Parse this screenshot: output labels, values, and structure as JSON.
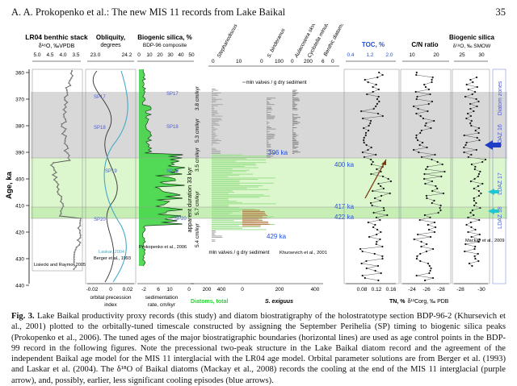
{
  "header": {
    "authors_title": "A. A. Prokopenko et al.: The new MIS 11 records from Lake Baikal",
    "page_number": "35"
  },
  "figure": {
    "y_axis": {
      "label": "Age, ka",
      "ticks": [
        "360",
        "370",
        "380",
        "390",
        "400",
        "410",
        "420",
        "430",
        "440"
      ]
    },
    "lr04": {
      "title": "LR04 benthic stack",
      "subtitle": "δ¹⁸O, ‰VPDB",
      "ticks": [
        "5.0",
        "4.5",
        "4.0",
        "3.5"
      ],
      "credit": "Lisiecki and Raymo, 2005"
    },
    "orbital": {
      "title": "Obliquity,",
      "title2": "degrees",
      "top_ticks": [
        "23.0",
        "24.2"
      ],
      "bottom_ticks": [
        "-0.02",
        "0",
        "0.02"
      ],
      "bottom_label_1": "orbital precession",
      "bottom_label_2": "index",
      "credit_laskar": "Laskar, 2004",
      "credit_berger": "Berger et al., 1993",
      "sp_labels": [
        "SP17",
        "SP18",
        "SP19",
        "SP20"
      ]
    },
    "bsi": {
      "title": "Biogenic silica, %",
      "subtitle": "BDP-96 composite",
      "top_ticks": [
        "0",
        "10",
        "20",
        "30",
        "40",
        "50"
      ],
      "bottom_ticks": [
        "-2",
        "6",
        "10"
      ],
      "bottom_label_1": "sedimentation",
      "bottom_label_2": "rate, cm/kyr",
      "credit": "Prokopenko et al., 2006",
      "sp_labels": [
        "SP17",
        "SP18",
        "SP19",
        "SP20"
      ],
      "rates": [
        "3.8 cm/kyr",
        "5.3 cm/kyr",
        "3.5 cm/kyr",
        "5.7 cm/kyr",
        "5.4 cm/kyr"
      ],
      "duration": "apparent duration 33 kyr"
    },
    "diatoms": {
      "species": [
        "Stephanodiscus distinctus",
        "S. binderanus",
        "Aulacoseira skvortzowii",
        "Cyclotella minuta",
        "Benthic diatoms"
      ],
      "units_label": "mln valves / g dry sediment",
      "units_label_2": "mln valves / g dry sediment",
      "credit": "Khursevich et al., 2001",
      "total_label": "Diatoms, total",
      "exiguus_label": "S. exiguus",
      "bottom_ticks_total": [
        "0",
        "200",
        "400"
      ],
      "bottom_ticks_exiguus": [
        "0",
        "200",
        "400"
      ],
      "top_ticks_a": [
        "0",
        "10"
      ],
      "top_ticks_b": [
        "0",
        "100"
      ],
      "top_ticks_c": [
        "0",
        "200"
      ],
      "top_ticks_d": [
        "6",
        "0"
      ],
      "ages": [
        "396 ka",
        "400 ka",
        "417 ka",
        "422 ka",
        "429 ka"
      ]
    },
    "toc": {
      "title": "TOC, %",
      "top_ticks": [
        "0.4",
        "1.2",
        "2.0"
      ],
      "bottom_label": "TN, %",
      "bottom_ticks": [
        "0.08",
        "0.12",
        "0.16"
      ]
    },
    "cn": {
      "title": "C/N ratio",
      "top_ticks": [
        "10",
        "20"
      ],
      "bottom_ticks": [
        "-24",
        "-26",
        "-28"
      ],
      "bottom_label": "δ¹³Corg, ‰ PDB"
    },
    "bsio": {
      "title": "Biogenic silica",
      "subtitle": "δ¹⁸O, ‰ SMOW",
      "top_ticks": [
        "25",
        "30"
      ],
      "credit": "Mackay et al., 2009",
      "bottom_ticks": [
        "-28",
        "-30"
      ]
    },
    "zones": {
      "title": "Diatom zones",
      "labels": [
        "LDAZ 16",
        "LDAZ 17",
        "LDAZ 18"
      ]
    },
    "colors": {
      "zone_gray": "#d6d6d6",
      "zone_green": "#d9f5c8",
      "zone_green2": "#c5edb2",
      "diatom_green": "#2fd13a",
      "exiguus_brown": "#b8804a",
      "sp_label": "#4b5bd6",
      "age_label": "#1f4fe0",
      "blue_arrow": "#1e3ec7",
      "cyan_arrow": "#1fc6d4",
      "purple_line": "#8a3fb0",
      "cyan_curve": "#44a9c8"
    }
  },
  "caption": {
    "label": "Fig. 3.",
    "text": "Lake Baikal productivity proxy records (this study) and diatom biostratigraphy of the holostratotype section BDP-96-2 (Khursevich et al., 2001) plotted to the orbitally-tuned timescale constructed by assigning the September Perihelia (SP) timing to biogenic silica peaks (Prokopenko et al., 2006). The tuned ages of the major biostratigraphic boundaries (horizontal lines) are used as age control points in the BDP-99 record in the following figures. Note the precessional two-peak structure in the Lake Baikal diatom record and the agreement of the independent Baikal age model for the MIS 11 interglacial with the LR04 age model. Orbital parameter solutions are from Berger et al. (1993) and Laskar et al. (2004). The δ¹⁸O of Baikal diatoms (Mackay et al., 2008) records the cooling at the end of the MIS 11 interglacial (purple arrow), and, possibly, earlier, less significant cooling episodes (blue arrows)."
  }
}
